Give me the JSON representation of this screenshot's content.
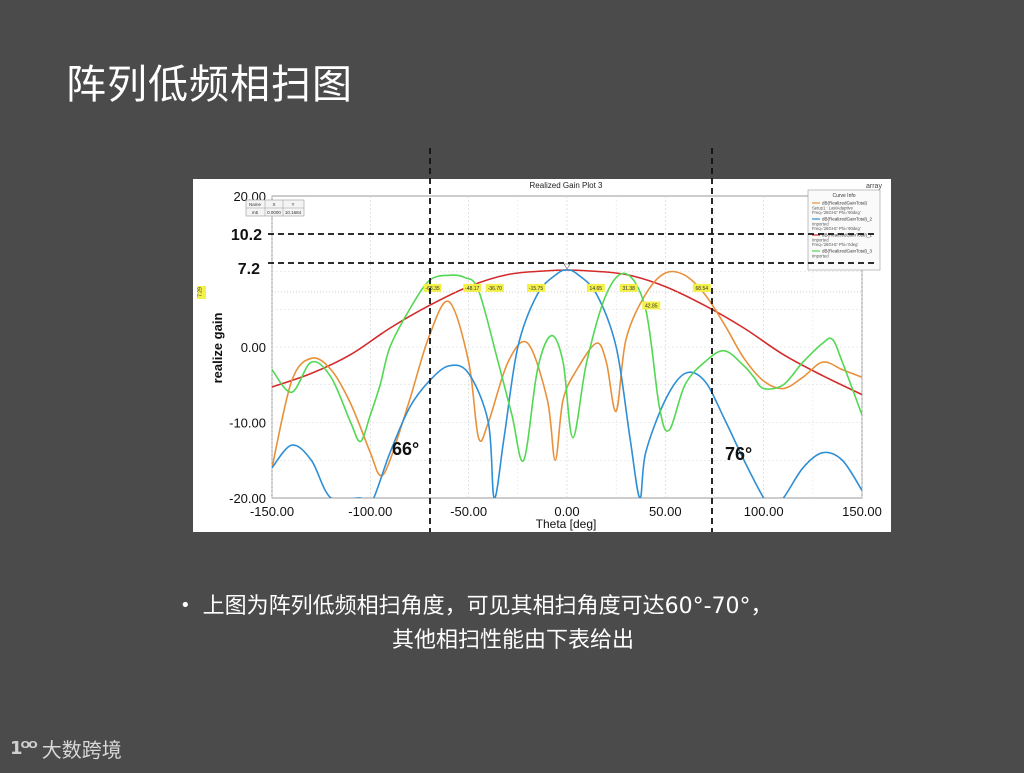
{
  "slide": {
    "title": "阵列低频相扫图",
    "bullet_line1": "上图为阵列低频相扫角度，可见其相扫角度可达60°-70°，",
    "bullet_line2": "其他相扫性能由下表给出",
    "footer_brand": "大数跨境",
    "footer_mark": "1ᴼᴼ"
  },
  "chart_data": {
    "type": "line",
    "title": "Realized Gain Plot 3",
    "corner_label": "array",
    "xlabel": "Theta [deg]",
    "ylabel": "realize gain",
    "xlim": [
      -150,
      150
    ],
    "ylim": [
      -20,
      20
    ],
    "x_ticks": [
      "-150.00",
      "-100.00",
      "-50.00",
      "0.00",
      "50.00",
      "100.00",
      "150.00"
    ],
    "y_ticks": [
      "20.00",
      "0.00",
      "-10.00",
      "-20.00"
    ],
    "y_tick_values": [
      20,
      0,
      -10,
      -20
    ],
    "grid": true,
    "legend_position": "top-right",
    "legend": {
      "header": "Curve Info",
      "entries": [
        {
          "text": "dB(RealizedGainTotal)",
          "sub": "Setup1 : LastAdaptive",
          "sub2": "Freq='28GHz' Phi='90deg'",
          "color": "#e8913a"
        },
        {
          "text": "dB(RealizedGainTotal)_2",
          "sub": "Imported",
          "sub2": "Freq='28GHz' Phi='90deg'",
          "color": "#2e8fd6"
        },
        {
          "text": "dB(RealizedGainTotal)_1",
          "sub": "Imported",
          "sub2": "Freq='28GHz' Phi='0deg'",
          "color": "#d42a2a"
        },
        {
          "text": "dB(RealizedGainTotal)_3",
          "sub": "Imported",
          "sub2": "",
          "color": "#52d852"
        }
      ]
    },
    "marker_table": {
      "headers": [
        "Name",
        "X",
        "Y"
      ],
      "row": [
        "m5",
        "0.0000",
        "10.1684"
      ]
    },
    "marker_side_label": "7.29",
    "peak_labels": [
      "-68.35",
      "-48.17",
      "-36.70",
      "-15.75",
      "14.65",
      "31.38",
      "42.85",
      "68.54"
    ],
    "annotations": {
      "level_high": "10.2",
      "level_low": "7.2",
      "angle_left": "66°",
      "angle_right": "76°"
    },
    "series": [
      {
        "color": "#d42a2a",
        "x": [
          -150,
          -130,
          -110,
          -90,
          -70,
          -50,
          -30,
          -10,
          0,
          10,
          30,
          50,
          70,
          90,
          110,
          130,
          150
        ],
        "values": [
          -5.3,
          -3.5,
          -1.0,
          2.5,
          5.5,
          8.0,
          9.6,
          10.1,
          10.2,
          10.1,
          9.6,
          8.0,
          5.5,
          2.5,
          -1.0,
          -3.8,
          -6.3
        ]
      },
      {
        "color": "#e8913a",
        "x": [
          -150,
          -140,
          -130,
          -120,
          -110,
          -100,
          -95,
          -90,
          -80,
          -70,
          -60,
          -50,
          -45,
          -40,
          -30,
          -20,
          -10,
          -6,
          -2,
          5,
          15,
          20,
          25,
          30,
          40,
          50,
          60,
          70,
          80,
          90,
          100,
          110,
          120,
          130,
          140,
          150
        ],
        "values": [
          -16,
          -4.5,
          -1.5,
          -3,
          -7.5,
          -14,
          -17,
          -15,
          -7,
          1.5,
          6,
          -2,
          -12,
          -10,
          -2,
          0.5,
          -7,
          -15,
          -7,
          -3,
          0.5,
          -2,
          -8.5,
          1,
          7,
          9.8,
          9.5,
          7,
          3,
          -1.5,
          -4.5,
          -5.5,
          -4,
          -2,
          -3,
          -4
        ]
      },
      {
        "color": "#2e8fd6",
        "x": [
          -150,
          -140,
          -130,
          -120,
          -105,
          -100,
          -90,
          -80,
          -70,
          -60,
          -50,
          -40,
          -37,
          -32,
          -25,
          -15,
          -5,
          0,
          5,
          15,
          25,
          32,
          37,
          40,
          50,
          60,
          70,
          80,
          90,
          100,
          104,
          110,
          120,
          130,
          140,
          150
        ],
        "values": [
          -16,
          -13,
          -15,
          -20,
          -20,
          -21,
          -14,
          -8,
          -4.5,
          -2.5,
          -3.5,
          -10,
          -20,
          -12,
          0,
          7,
          9.7,
          10.2,
          9.7,
          7,
          0,
          -12,
          -20,
          -14,
          -7,
          -3.5,
          -4.5,
          -9.5,
          -15,
          -20,
          -21,
          -20,
          -16,
          -14,
          -15,
          -19
        ]
      },
      {
        "color": "#52d852",
        "x": [
          -150,
          -140,
          -130,
          -120,
          -110,
          -105,
          -100,
          -95,
          -90,
          -80,
          -70,
          -60,
          -52,
          -45,
          -35,
          -28,
          -22,
          -15,
          -8,
          -2,
          3,
          10,
          20,
          30,
          40,
          47,
          52,
          60,
          70,
          80,
          90,
          95,
          100,
          110,
          120,
          130,
          135,
          140,
          150
        ],
        "values": [
          -3,
          -6,
          -2,
          -4,
          -10,
          -12.5,
          -9,
          -5,
          0,
          5,
          8.8,
          9.5,
          9.2,
          7.5,
          -2,
          -9,
          -15,
          -3,
          1.5,
          -2,
          -12,
          -2,
          7,
          9.7,
          5,
          -8,
          -11,
          -5,
          -2,
          -0.5,
          -2.5,
          -4,
          -5.5,
          -5,
          -2,
          0.5,
          1,
          -2,
          -9
        ]
      }
    ]
  }
}
